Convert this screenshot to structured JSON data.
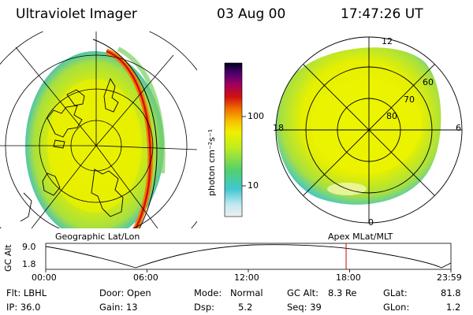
{
  "header": {
    "title": "Ultraviolet Imager",
    "date": "03 Aug 00",
    "time": "17:47:26 UT"
  },
  "left_map": {
    "caption": "Geographic Lat/Lon"
  },
  "right_map": {
    "caption": "Apex MLat/MLT",
    "mlt_labels": [
      "12",
      "18",
      "6",
      "0"
    ],
    "lat_labels": [
      "60",
      "70",
      "80"
    ]
  },
  "colorbar": {
    "unit": "photon cm⁻²s⁻¹",
    "ticks": [
      "100",
      "10"
    ]
  },
  "timeline": {
    "ylabel": "GC Alt",
    "ymax": "9.0",
    "ymin": "1.8",
    "xticks": [
      "00:00",
      "06:00",
      "12:00",
      "18:00",
      "23:59"
    ],
    "current_time_fraction": 0.7413
  },
  "info": {
    "col1": [
      "Flt: LBHL",
      "IP: 36.0"
    ],
    "col2": [
      "Door: Open",
      "Gain: 13"
    ],
    "col3a": [
      "Mode:",
      "Dsp:"
    ],
    "col3b": [
      "Normal",
      "5.2"
    ],
    "col4a": [
      "GC Alt:",
      "Seq: 39"
    ],
    "col4b": [
      "8.3 Re",
      ""
    ],
    "col5a": [
      "GLat:",
      "GLon:"
    ],
    "col5b": [
      "81.8",
      "1.2"
    ]
  },
  "colors": {
    "accent_line": "#cc0000"
  }
}
